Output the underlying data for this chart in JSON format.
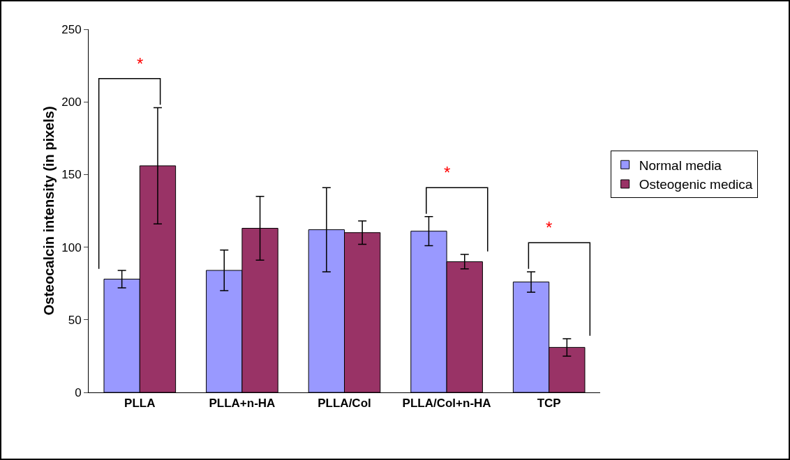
{
  "chart_data": {
    "type": "bar",
    "ylabel": "Osteocalcin intensity (in pixels)",
    "categories": [
      "PLLA",
      "PLLA+n-HA",
      "PLLA/Col",
      "PLLA/Col+n-HA",
      "TCP"
    ],
    "series": [
      {
        "name": "Normal media",
        "color": "#9999ff",
        "values": [
          78,
          84,
          112,
          111,
          76
        ],
        "errors": [
          6,
          14,
          29,
          10,
          7
        ]
      },
      {
        "name": "Osteogenic medica",
        "color": "#993366",
        "values": [
          156,
          113,
          110,
          90,
          31
        ],
        "errors": [
          40,
          22,
          8,
          5,
          6
        ]
      }
    ],
    "ylim": [
      0,
      250
    ],
    "yticks": [
      0,
      50,
      100,
      150,
      200,
      250
    ],
    "grid": false,
    "legend": "right",
    "annotations": [
      "*",
      "*",
      "*"
    ]
  }
}
